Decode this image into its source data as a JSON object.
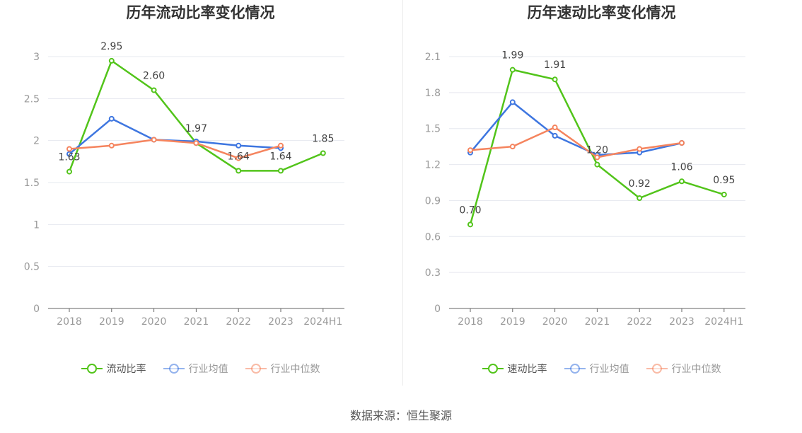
{
  "source": "数据来源：恒生聚源",
  "chart_data": [
    {
      "type": "line",
      "title": "历年流动比率变化情况",
      "categories": [
        "2018",
        "2019",
        "2020",
        "2021",
        "2022",
        "2023",
        "2024H1"
      ],
      "ylim": [
        0,
        3
      ],
      "yticks": [
        0,
        0.5,
        1,
        1.5,
        2,
        2.5,
        3
      ],
      "ytick_labels": [
        "0",
        "0.5",
        "1",
        "1.5",
        "2",
        "2.5",
        "3"
      ],
      "grid": true,
      "legend_position": "bottom",
      "series": [
        {
          "name": "流动比率",
          "color": "#52c41a",
          "labeled": true,
          "values": [
            1.63,
            2.95,
            2.6,
            1.97,
            1.64,
            1.64,
            1.85
          ],
          "labels": [
            "1.63",
            "2.95",
            "2.60",
            "1.97",
            "1.64",
            "1.64",
            "1.85"
          ]
        },
        {
          "name": "行业均值",
          "color": "#3e76e0",
          "labeled": false,
          "values": [
            1.84,
            2.26,
            2.01,
            1.99,
            1.94,
            1.91,
            null
          ]
        },
        {
          "name": "行业中位数",
          "color": "#f5845e",
          "labeled": false,
          "values": [
            1.9,
            1.94,
            2.01,
            1.97,
            1.79,
            1.94,
            null
          ]
        }
      ]
    },
    {
      "type": "line",
      "title": "历年速动比率变化情况",
      "categories": [
        "2018",
        "2019",
        "2020",
        "2021",
        "2022",
        "2023",
        "2024H1"
      ],
      "ylim": [
        0,
        2.1
      ],
      "yticks": [
        0,
        0.3,
        0.6,
        0.9,
        1.2,
        1.5,
        1.8,
        2.1
      ],
      "ytick_labels": [
        "0",
        "0.3",
        "0.6",
        "0.9",
        "1.2",
        "1.5",
        "1.8",
        "2.1"
      ],
      "grid": true,
      "legend_position": "bottom",
      "series": [
        {
          "name": "速动比率",
          "color": "#52c41a",
          "labeled": true,
          "values": [
            0.7,
            1.99,
            1.91,
            1.2,
            0.92,
            1.06,
            0.95
          ],
          "labels": [
            "0.70",
            "1.99",
            "1.91",
            "1.20",
            "0.92",
            "1.06",
            "0.95"
          ]
        },
        {
          "name": "行业均值",
          "color": "#3e76e0",
          "labeled": false,
          "values": [
            1.3,
            1.72,
            1.44,
            1.28,
            1.3,
            1.38,
            null
          ]
        },
        {
          "name": "行业中位数",
          "color": "#f5845e",
          "labeled": false,
          "values": [
            1.32,
            1.35,
            1.51,
            1.26,
            1.33,
            1.38,
            null
          ]
        }
      ]
    }
  ]
}
